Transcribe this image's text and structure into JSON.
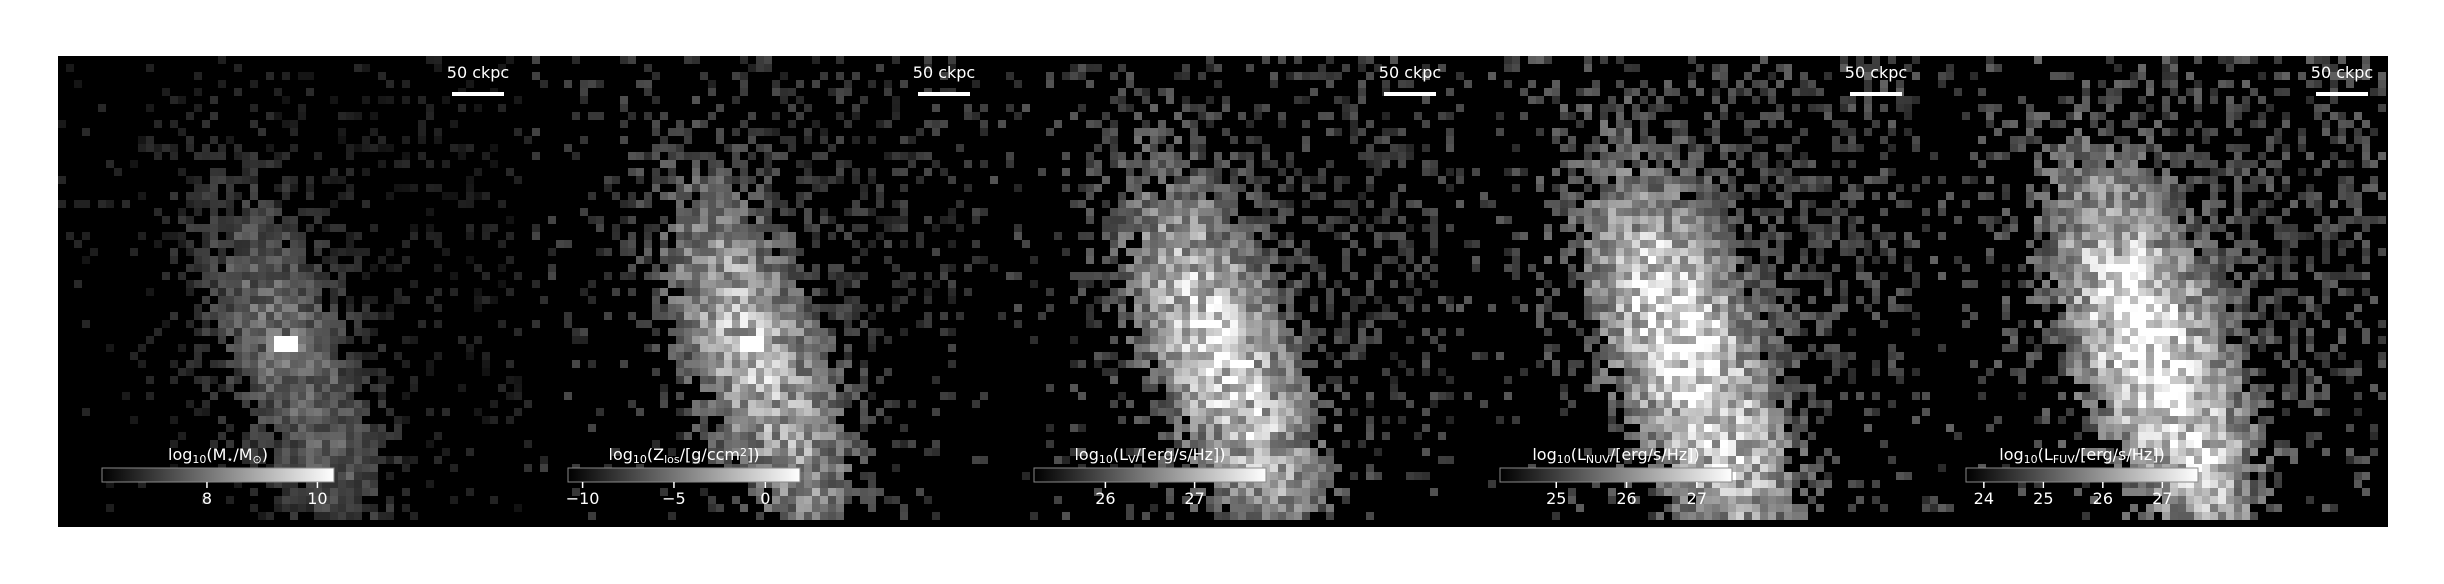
{
  "chart_data": [
    {
      "type": "image",
      "scale_bar_label": "50 ckpc",
      "colorbar_label": [
        {
          "text": "log"
        },
        {
          "text": "10",
          "sub": true
        },
        {
          "text": "(M"
        },
        {
          "text": "⋆",
          "sub": true
        },
        {
          "text": "/M"
        },
        {
          "text": "⊙",
          "sub": true
        },
        {
          "text": ")"
        }
      ],
      "clim": [
        6.1,
        10.3
      ],
      "cticks": [
        8,
        10
      ]
    },
    {
      "type": "image",
      "scale_bar_label": "50 ckpc",
      "colorbar_label": [
        {
          "text": "log"
        },
        {
          "text": "10",
          "sub": true
        },
        {
          "text": "(Z"
        },
        {
          "text": "los",
          "sub": true
        },
        {
          "text": "/[g/ccm"
        },
        {
          "text": "2",
          "sup": true
        },
        {
          "text": "])"
        }
      ],
      "clim": [
        -10.8,
        1.9
      ],
      "cticks": [
        {
          "value": -10,
          "label": "−10"
        },
        {
          "value": -5,
          "label": "−5"
        },
        0
      ]
    },
    {
      "type": "image",
      "scale_bar_label": "50 ckpc",
      "colorbar_label": [
        {
          "text": "log"
        },
        {
          "text": "10",
          "sub": true
        },
        {
          "text": "(L"
        },
        {
          "text": "V",
          "sub": true
        },
        {
          "text": "/[erg/s/Hz])"
        }
      ],
      "clim": [
        25.2,
        27.8
      ],
      "cticks": [
        26,
        27
      ]
    },
    {
      "type": "image",
      "scale_bar_label": "50 ckpc",
      "colorbar_label": [
        {
          "text": "log"
        },
        {
          "text": "10",
          "sub": true
        },
        {
          "text": "(L"
        },
        {
          "text": "NUV",
          "sub": true
        },
        {
          "text": "/[erg/s/Hz])"
        }
      ],
      "clim": [
        24.2,
        27.5
      ],
      "cticks": [
        25,
        26,
        27
      ]
    },
    {
      "type": "image",
      "scale_bar_label": "50 ckpc",
      "colorbar_label": [
        {
          "text": "log"
        },
        {
          "text": "10",
          "sub": true
        },
        {
          "text": "(L"
        },
        {
          "text": "FUV",
          "sub": true
        },
        {
          "text": "/[erg/s/Hz])"
        }
      ],
      "clim": [
        23.7,
        27.6
      ],
      "cticks": [
        24,
        25,
        26,
        27
      ]
    }
  ]
}
